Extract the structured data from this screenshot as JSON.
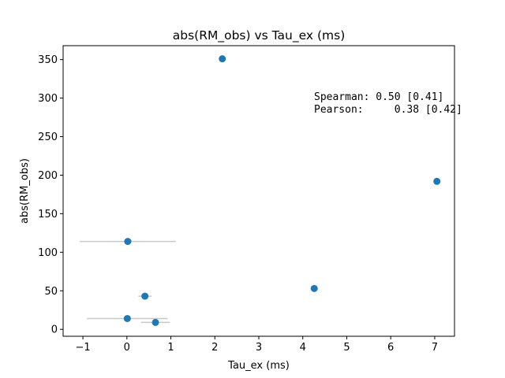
{
  "chart_data": {
    "type": "scatter",
    "title": "abs(RM_obs) vs Tau_ex (ms)",
    "xlabel": "Tau_ex (ms)",
    "ylabel": "abs(RM_obs)",
    "xlim": [
      -1.45,
      7.45
    ],
    "ylim": [
      -9,
      368
    ],
    "xticks": [
      -1,
      0,
      1,
      2,
      3,
      4,
      5,
      6,
      7
    ],
    "xtick_labels": [
      "−1",
      "0",
      "1",
      "2",
      "3",
      "4",
      "5",
      "6",
      "7"
    ],
    "yticks": [
      0,
      50,
      100,
      150,
      200,
      250,
      300,
      350
    ],
    "ytick_labels": [
      "0",
      "50",
      "100",
      "150",
      "200",
      "250",
      "300",
      "350"
    ],
    "grid": false,
    "marker_color": "#1f77b4",
    "errorbar_color": "#c8c8c8",
    "points": [
      {
        "x": 2.17,
        "y": 351,
        "xerr": 0
      },
      {
        "x": 7.05,
        "y": 192,
        "xerr": 0
      },
      {
        "x": 0.02,
        "y": 114,
        "xerr": 1.09
      },
      {
        "x": 4.26,
        "y": 53,
        "xerr": 0
      },
      {
        "x": 0.41,
        "y": 43,
        "xerr": 0.15
      },
      {
        "x": 0.01,
        "y": 14,
        "xerr": 0.92
      },
      {
        "x": 0.65,
        "y": 9,
        "xerr": 0.33
      }
    ],
    "annotations": [
      {
        "text": "Spearman: 0.50 [0.41]"
      },
      {
        "text": "Pearson:     0.38 [0.42]"
      }
    ]
  }
}
